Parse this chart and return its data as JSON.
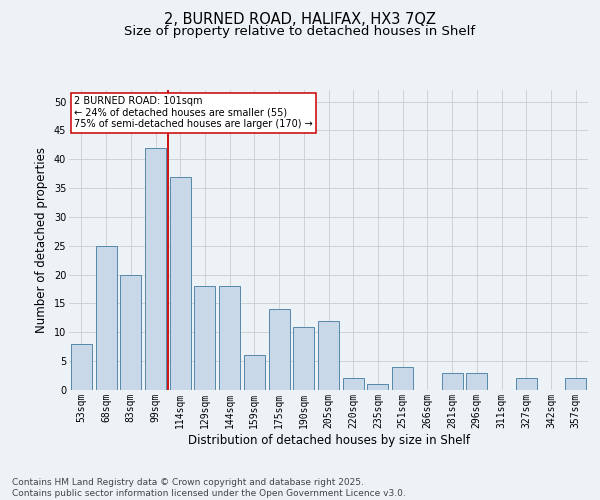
{
  "title_line1": "2, BURNED ROAD, HALIFAX, HX3 7QZ",
  "title_line2": "Size of property relative to detached houses in Shelf",
  "xlabel": "Distribution of detached houses by size in Shelf",
  "ylabel": "Number of detached properties",
  "bar_labels": [
    "53sqm",
    "68sqm",
    "83sqm",
    "99sqm",
    "114sqm",
    "129sqm",
    "144sqm",
    "159sqm",
    "175sqm",
    "190sqm",
    "205sqm",
    "220sqm",
    "235sqm",
    "251sqm",
    "266sqm",
    "281sqm",
    "296sqm",
    "311sqm",
    "327sqm",
    "342sqm",
    "357sqm"
  ],
  "bar_values": [
    8,
    25,
    20,
    42,
    37,
    18,
    18,
    6,
    14,
    11,
    12,
    2,
    1,
    4,
    0,
    3,
    3,
    0,
    2,
    0,
    2
  ],
  "bar_color": "#c8d8e8",
  "bar_edge_color": "#5588aa",
  "grid_color": "#cccccc",
  "background_color": "#edf2f7",
  "red_line_x": 3.5,
  "annotation_text": "2 BURNED ROAD: 101sqm\n← 24% of detached houses are smaller (55)\n75% of semi-detached houses are larger (170) →",
  "annotation_box_color": "#ffffff",
  "annotation_box_edge": "#cc0000",
  "annotation_text_color": "#000000",
  "red_line_color": "#cc0000",
  "ylim": [
    0,
    52
  ],
  "yticks": [
    0,
    5,
    10,
    15,
    20,
    25,
    30,
    35,
    40,
    45,
    50
  ],
  "footer_text": "Contains HM Land Registry data © Crown copyright and database right 2025.\nContains public sector information licensed under the Open Government Licence v3.0.",
  "title_fontsize": 10.5,
  "subtitle_fontsize": 9.5,
  "axis_label_fontsize": 8.5,
  "tick_fontsize": 7,
  "footer_fontsize": 6.5
}
